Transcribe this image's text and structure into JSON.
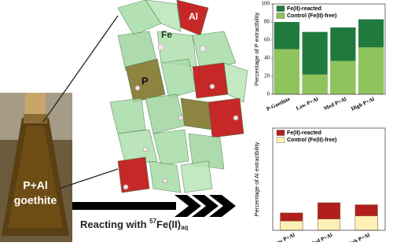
{
  "chart_data": [
    {
      "type": "bar",
      "ylabel": "Percentage of P extractbility",
      "categories": [
        "P-Goethite",
        "Low P+Al",
        "Med P+Al",
        "High P+Al"
      ],
      "series": [
        {
          "name": "Fe(II)-reacted",
          "color": "#1f7a3c",
          "values": [
            80,
            69,
            74,
            83
          ]
        },
        {
          "name": "Control (Fe(II)-free)",
          "color": "#8fc35c",
          "values": [
            50,
            22,
            37,
            52
          ]
        }
      ],
      "ylim": [
        0,
        100
      ],
      "yticks": [
        0,
        20,
        40,
        60,
        80,
        100
      ]
    },
    {
      "type": "bar",
      "ylabel": "Percentage of Al extractbility",
      "categories": [
        "Low P+Al",
        "Med P+Al",
        "High P+Al"
      ],
      "series": [
        {
          "name": "Fe(II)-reacted",
          "color": "#b01e1e",
          "values": [
            17,
            27,
            25
          ]
        },
        {
          "name": "Control (Fe(II)-free)",
          "color": "#fdf0b6",
          "values": [
            9,
            11,
            14
          ]
        }
      ],
      "ylim": [
        0,
        100
      ]
    }
  ],
  "figure": {
    "sample_label": [
      "P+Al",
      "goethite"
    ],
    "atom_labels": [
      "Fe",
      "Al",
      "P"
    ],
    "reaction": [
      "Reacting with ",
      "57",
      "Fe(II)",
      "aq"
    ]
  }
}
